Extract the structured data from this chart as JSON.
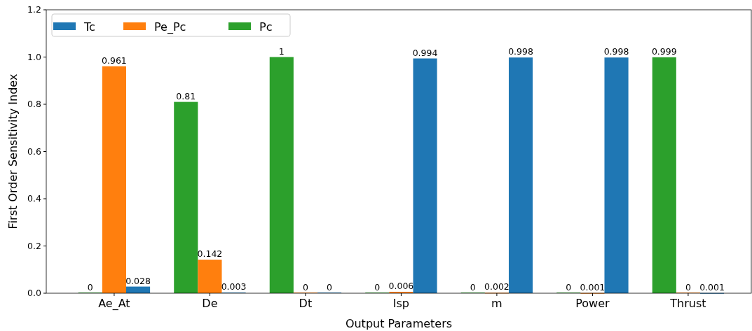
{
  "chart_data": {
    "type": "bar",
    "xlabel": "Output Parameters",
    "ylabel": "First Order Sensitivity Index",
    "categories": [
      "Ae_At",
      "De",
      "Dt",
      "Isp",
      "m",
      "Power",
      "Thrust"
    ],
    "series": [
      {
        "name": "Pc",
        "color": "#2ca02c",
        "values": [
          0,
          0.81,
          1,
          0,
          0,
          0,
          0.999
        ]
      },
      {
        "name": "Pe_Pc",
        "color": "#ff7f0e",
        "values": [
          0.961,
          0.142,
          0,
          0.006,
          0.002,
          0.001,
          0
        ]
      },
      {
        "name": "Tc",
        "color": "#1f77b4",
        "values": [
          0.028,
          0.003,
          0,
          0.994,
          0.998,
          0.998,
          0.001
        ]
      }
    ],
    "ylim": [
      0,
      1.2
    ],
    "yticks": [
      {
        "value": 0,
        "label": "0.0"
      },
      {
        "value": 0.2,
        "label": "0.2"
      },
      {
        "value": 0.4,
        "label": "0.4"
      },
      {
        "value": 0.6,
        "label": "0.6"
      },
      {
        "value": 0.8,
        "label": "0.8"
      },
      {
        "value": 1,
        "label": "1.0"
      },
      {
        "value": 1.2,
        "label": "1.2"
      }
    ],
    "data_labels": true,
    "legend": "top left",
    "grid": false
  }
}
